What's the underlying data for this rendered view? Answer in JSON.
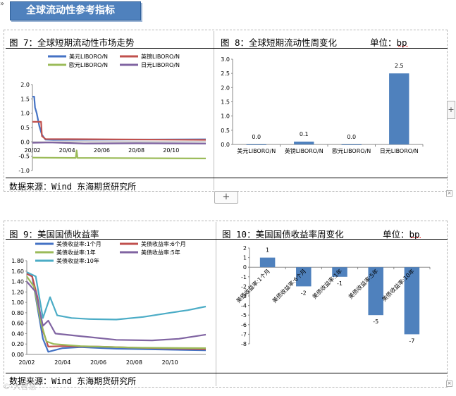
{
  "banner": {
    "title": "全球流动性参考指标"
  },
  "sections": {
    "fig7": {
      "title": "图 7：全球短期流动性市场走势"
    },
    "fig8": {
      "title": "图 8：全球短期流动性周变化",
      "unit": "单位：bp"
    },
    "fig9": {
      "title": "图 9：美国国债收益率"
    },
    "fig10": {
      "title": "图 10：美国国债收益率周变化",
      "unit": "单位：bp"
    },
    "source_top": "数据来源：Wind  东海期货研究所",
    "source_bottom": "数据来源：Wind  东海期货研究所"
  },
  "ui": {
    "add_label": "+",
    "side_label": "+",
    "handle_label": "×",
    "left_marker": "»"
  },
  "watermark": "©·大智慧",
  "colors": {
    "blue": "#4472c4",
    "red": "#c0504d",
    "green": "#9bbb59",
    "purple": "#8064a2",
    "cyan": "#4bacc6",
    "bar": "#4f81bd"
  },
  "chart_data": [
    {
      "type": "line",
      "legend": [
        "美元LIBORO/N",
        "英镑LIBORO/N",
        "欧元LIBORO/N",
        "日元LIBORO/N"
      ],
      "x_ticks": [
        "20/02",
        "20/04",
        "20/06",
        "20/08",
        "20/10"
      ],
      "y_ticks": [
        "2.0",
        "1.5",
        "1.0",
        "0.5",
        "0.0",
        "-0.5",
        "-1.0"
      ],
      "ylim": [
        -1.0,
        2.0
      ],
      "series": [
        {
          "name": "美元LIBORO/N",
          "color": "#4472c4",
          "points": [
            [
              0,
              1.58
            ],
            [
              0.1,
              1.58
            ],
            [
              0.15,
              1.2
            ],
            [
              0.25,
              1.0
            ],
            [
              0.4,
              0.55
            ],
            [
              0.55,
              0.25
            ],
            [
              0.75,
              0.08
            ],
            [
              1.2,
              0.07
            ],
            [
              5,
              0.08
            ],
            [
              10,
              0.09
            ]
          ]
        },
        {
          "name": "英镑LIBORO/N",
          "color": "#c0504d",
          "points": [
            [
              0,
              0.7
            ],
            [
              0.5,
              0.7
            ],
            [
              0.55,
              0.2
            ],
            [
              0.75,
              0.1
            ],
            [
              10,
              0.07
            ]
          ]
        },
        {
          "name": "欧元LIBORO/N",
          "color": "#9bbb59",
          "points": [
            [
              0,
              -0.55
            ],
            [
              2.5,
              -0.56
            ],
            [
              2.55,
              -0.3
            ],
            [
              2.6,
              -0.56
            ],
            [
              10,
              -0.58
            ]
          ]
        },
        {
          "name": "日元LIBORO/N",
          "color": "#8064a2",
          "points": [
            [
              0,
              -0.03
            ],
            [
              1,
              -0.02
            ],
            [
              3,
              -0.06
            ],
            [
              6,
              -0.05
            ],
            [
              10,
              -0.06
            ]
          ]
        }
      ]
    },
    {
      "type": "bar",
      "categories": [
        "美元LIBORO/N",
        "英镑LIBORO/N",
        "欧元LIBORO/N",
        "日元LIBORO/N"
      ],
      "values": [
        0.0,
        0.1,
        0.0,
        2.5
      ],
      "labels": [
        "0.0",
        "0.1",
        "0.0",
        "2.5"
      ],
      "y_ticks": [
        "3.0",
        "2.5",
        "2.0",
        "1.5",
        "1.0",
        "0.5",
        "0.0"
      ],
      "ylim": [
        0,
        3.0
      ]
    },
    {
      "type": "line",
      "legend": [
        "美债收益率:1个月",
        "美债收益率:6个月",
        "美债收益率:1年",
        "美债收益率:5年",
        "美债收益率:10年"
      ],
      "x_ticks": [
        "20/02",
        "20/04",
        "20/06",
        "20/08",
        "20/10"
      ],
      "y_ticks": [
        "1.80",
        "1.60",
        "1.40",
        "1.20",
        "1.00",
        "0.80",
        "0.60",
        "0.40",
        "0.20",
        "0.00"
      ],
      "ylim": [
        0,
        1.8
      ],
      "series": [
        {
          "name": "美债收益率:1个月",
          "color": "#4472c4",
          "points": [
            [
              0,
              1.55
            ],
            [
              0.3,
              1.5
            ],
            [
              0.6,
              0.9
            ],
            [
              0.9,
              0.3
            ],
            [
              1.2,
              0.05
            ],
            [
              2,
              0.12
            ],
            [
              3,
              0.14
            ],
            [
              5,
              0.11
            ],
            [
              8,
              0.09
            ],
            [
              10,
              0.08
            ]
          ]
        },
        {
          "name": "美债收益率:6个月",
          "color": "#c0504d",
          "points": [
            [
              0,
              1.55
            ],
            [
              0.3,
              1.5
            ],
            [
              0.6,
              1.1
            ],
            [
              0.9,
              0.45
            ],
            [
              1.2,
              0.15
            ],
            [
              2,
              0.16
            ],
            [
              4,
              0.15
            ],
            [
              6,
              0.13
            ],
            [
              10,
              0.1
            ]
          ]
        },
        {
          "name": "美债收益率:1年",
          "color": "#9bbb59",
          "points": [
            [
              0,
              1.5
            ],
            [
              0.4,
              1.3
            ],
            [
              0.8,
              0.6
            ],
            [
              1.1,
              0.25
            ],
            [
              1.5,
              0.2
            ],
            [
              3,
              0.16
            ],
            [
              6,
              0.13
            ],
            [
              10,
              0.12
            ]
          ]
        },
        {
          "name": "美债收益率:5年",
          "color": "#8064a2",
          "points": [
            [
              0,
              1.4
            ],
            [
              0.5,
              1.2
            ],
            [
              0.9,
              0.55
            ],
            [
              1.2,
              0.65
            ],
            [
              1.6,
              0.4
            ],
            [
              3,
              0.35
            ],
            [
              5,
              0.28
            ],
            [
              7,
              0.27
            ],
            [
              8.5,
              0.3
            ],
            [
              10,
              0.38
            ]
          ]
        },
        {
          "name": "美债收益率:10年",
          "color": "#4bacc6",
          "points": [
            [
              0,
              1.58
            ],
            [
              0.5,
              1.5
            ],
            [
              0.9,
              0.7
            ],
            [
              1.3,
              1.1
            ],
            [
              1.7,
              0.75
            ],
            [
              2.5,
              0.7
            ],
            [
              3.5,
              0.68
            ],
            [
              5,
              0.67
            ],
            [
              6.5,
              0.72
            ],
            [
              8,
              0.8
            ],
            [
              9,
              0.85
            ],
            [
              10,
              0.92
            ]
          ]
        }
      ]
    },
    {
      "type": "bar",
      "categories": [
        "美债收益率:1个月",
        "美债收益率:6个月",
        "美债收益率:1年",
        "美债收益率:5年",
        "美债收益率:10年"
      ],
      "values": [
        1,
        -2,
        -1,
        -5,
        -7
      ],
      "labels": [
        "1",
        "-2",
        "-1",
        "-5",
        "-7"
      ],
      "y_ticks": [
        "2",
        "1",
        "0",
        "-1",
        "-2",
        "-3",
        "-4",
        "-5",
        "-6",
        "-7",
        "-8"
      ],
      "ylim": [
        -8,
        2
      ]
    }
  ]
}
